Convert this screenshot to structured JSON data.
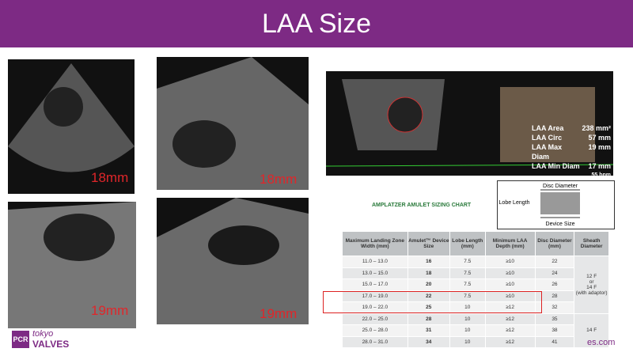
{
  "header": {
    "title": "LAA Size"
  },
  "echo_images": [
    {
      "label": "18mm"
    },
    {
      "label": "18mm"
    },
    {
      "label": "19mm"
    },
    {
      "label": "19mm"
    }
  ],
  "laa_measurements": {
    "rows": [
      [
        "LAA Area",
        "238 mm²"
      ],
      [
        "LAA Circ",
        "57 mm"
      ],
      [
        "LAA Max Diam",
        "19 mm"
      ],
      [
        "LAA Min Diam",
        "17 mm"
      ]
    ],
    "heart_rate": "55 bpm"
  },
  "sizing_chart": {
    "title": "AMPLATZER AMULET SIZING CHART",
    "diagram": {
      "disc_diameter": "Disc Diameter",
      "lobe_length": "Lobe Length",
      "device_size": "Device Size"
    },
    "table": {
      "headers": [
        "Maximum Landing Zone Width (mm)",
        "Amulet™ Device Size",
        "Lobe Length (mm)",
        "Minimum LAA Depth (mm)",
        "Disc Diameter (mm)",
        "Sheath Diameter"
      ],
      "rows": [
        [
          "11.0 – 13.0",
          "16",
          "7.5",
          "≥10",
          "22"
        ],
        [
          "13.0 – 15.0",
          "18",
          "7.5",
          "≥10",
          "24"
        ],
        [
          "15.0 – 17.0",
          "20",
          "7.5",
          "≥10",
          "26"
        ],
        [
          "17.0 – 19.0",
          "22",
          "7.5",
          "≥10",
          "28"
        ],
        [
          "19.0 – 22.0",
          "25",
          "10",
          "≥12",
          "32"
        ],
        [
          "22.0 – 25.0",
          "28",
          "10",
          "≥12",
          "35"
        ],
        [
          "25.0 – 28.0",
          "31",
          "10",
          "≥12",
          "38"
        ],
        [
          "28.0 – 31.0",
          "34",
          "10",
          "≥12",
          "41"
        ]
      ],
      "sheath": [
        [
          "12 F",
          "or",
          "14 F",
          "(with adaptor)"
        ],
        [
          "14 F"
        ]
      ]
    }
  },
  "logo": {
    "mark": "PCR",
    "city": "tokyo",
    "name": "VALVES"
  },
  "footer_url_fragment": "es.com"
}
